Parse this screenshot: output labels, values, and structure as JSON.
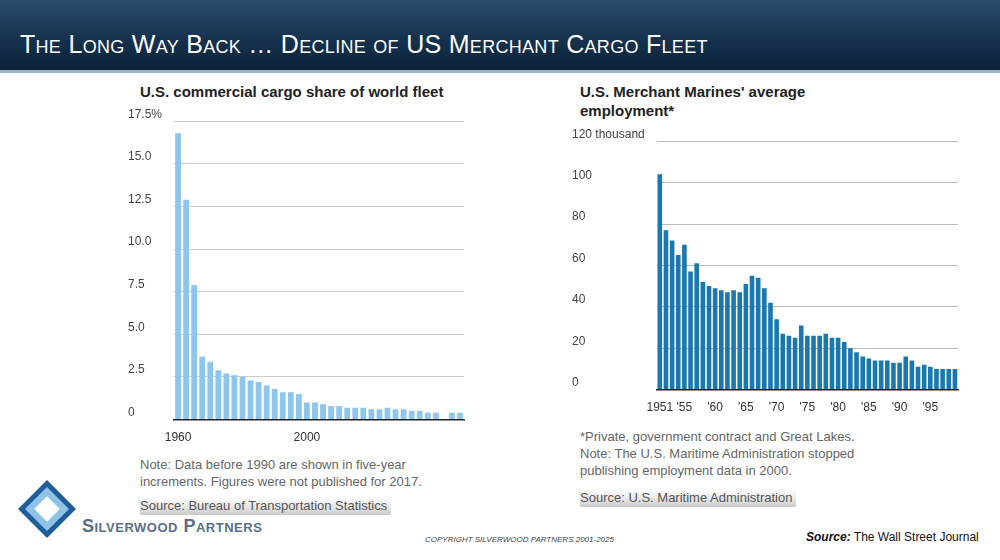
{
  "header": {
    "title": "The Long Way Back … Decline of US Merchant Cargo Fleet"
  },
  "chart_data": [
    {
      "type": "bar",
      "title": "U.S. commercial cargo share of world fleet",
      "categories": [
        "1960",
        null,
        null,
        null,
        null,
        null,
        null,
        null,
        null,
        null,
        null,
        null,
        null,
        null,
        null,
        null,
        "2000",
        null,
        null,
        null,
        null,
        null,
        null,
        null,
        null,
        null,
        null,
        null,
        null,
        null,
        null,
        null,
        null,
        null,
        null,
        null
      ],
      "values": [
        16.8,
        12.9,
        7.9,
        3.7,
        3.4,
        2.9,
        2.7,
        2.6,
        2.5,
        2.3,
        2.2,
        2.0,
        1.8,
        1.6,
        1.6,
        1.5,
        1.0,
        1.0,
        0.9,
        0.8,
        0.8,
        0.7,
        0.7,
        0.7,
        0.6,
        0.6,
        0.7,
        0.6,
        0.6,
        0.5,
        0.5,
        0.4,
        0.4,
        null,
        0.4,
        0.4
      ],
      "color": "#8ec5ec",
      "ylim": [
        0,
        17.5
      ],
      "yticks": [
        0,
        2.5,
        {
          "value": 5,
          "label": "5.0"
        },
        {
          "value": 7.5,
          "label": "7.5"
        },
        {
          "value": 10,
          "label": "10.0"
        },
        {
          "value": 12.5,
          "label": "12.5"
        },
        {
          "value": 15,
          "label": "15.0"
        },
        {
          "value": 17.5,
          "label": "17.5%"
        }
      ],
      "grid": true,
      "notes": [
        "Note: Data before 1990 are shown in five-year increments. Figures were not published for 2017."
      ],
      "source": "Source: Bureau of Transportation Statistics"
    },
    {
      "type": "bar",
      "title": "U.S. Merchant Marines' average employment*",
      "categories": [
        "1951",
        null,
        null,
        null,
        "'55",
        null,
        null,
        null,
        null,
        "'60",
        null,
        null,
        null,
        null,
        "'65",
        null,
        null,
        null,
        null,
        "'70",
        null,
        null,
        null,
        null,
        "'75",
        null,
        null,
        null,
        null,
        "'80",
        null,
        null,
        null,
        null,
        "'85",
        null,
        null,
        null,
        null,
        "'90",
        null,
        null,
        null,
        null,
        "'95",
        null,
        null,
        null,
        null
      ],
      "values": [
        104,
        77,
        72,
        65,
        70,
        57,
        61,
        52,
        50,
        49,
        48,
        47,
        48,
        47,
        51,
        55,
        54,
        49,
        42,
        34,
        27,
        26,
        25,
        31,
        26,
        26,
        26,
        27,
        25,
        25,
        23,
        20,
        18,
        16,
        15,
        14,
        14,
        14,
        13,
        13,
        16,
        14,
        11,
        12,
        11,
        10,
        10,
        10,
        10
      ],
      "color": "#1a77b0",
      "ylim": [
        0,
        120
      ],
      "yticks": [
        0,
        20,
        40,
        60,
        80,
        100,
        {
          "value": 120,
          "label": "120 thousand"
        }
      ],
      "grid": true,
      "notes": [
        "*Private, government contract and Great Lakes.",
        "Note: The U.S. Maritime Administration stopped publishing employment data in 2000."
      ],
      "source": "Source: U.S. Maritime Administration"
    }
  ],
  "footer": {
    "logo": "Silverwood Partners",
    "copyright": "COPYRIGHT SILVERWOOD PARTNERS 2001-2025",
    "source_label": "Source:",
    "source": "The Wall Street Journal"
  }
}
